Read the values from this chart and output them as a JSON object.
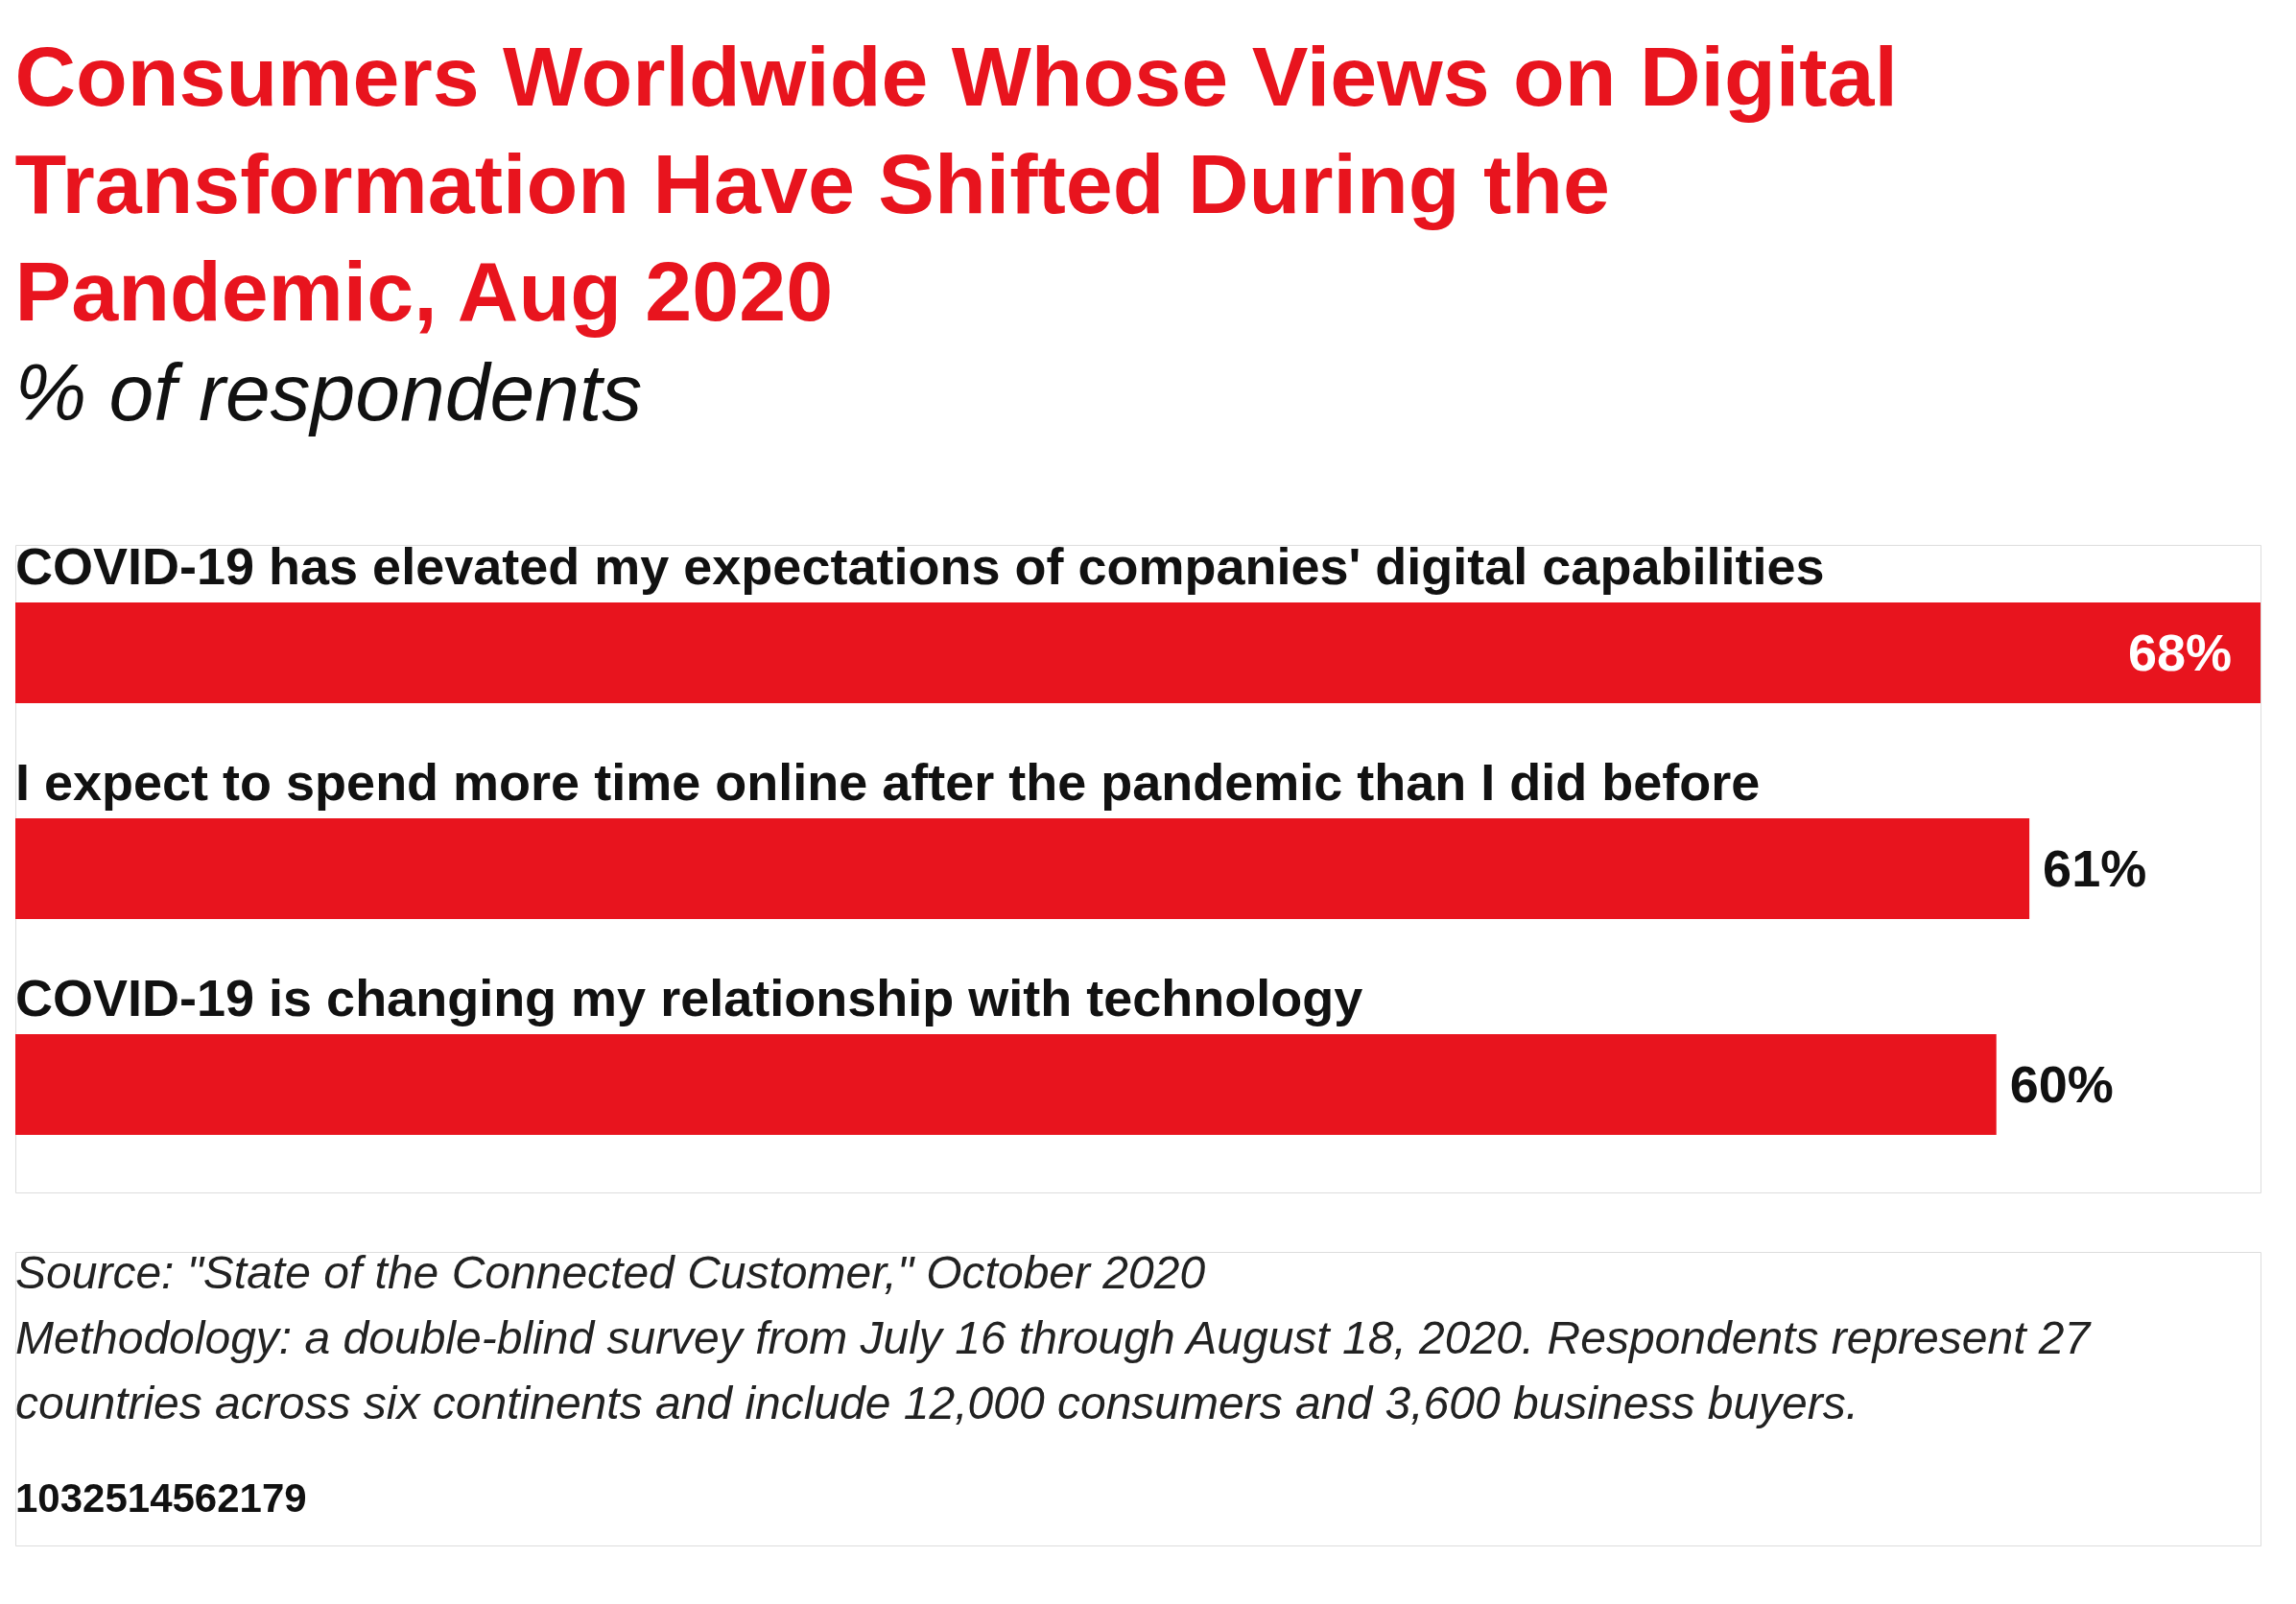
{
  "chart_data": {
    "type": "bar",
    "orientation": "horizontal",
    "title": "Consumers Worldwide Whose Views on Digital Transformation Have Shifted During the Pandemic, Aug 2020",
    "subtitle": "% of respondents",
    "categories": [
      "COVID-19 has elevated my expectations of companies' digital capabilities",
      "I expect to spend more time online after the pandemic than I did before",
      "COVID-19 is changing my relationship with technology"
    ],
    "values": [
      68,
      61,
      60
    ],
    "color": "#e8141e",
    "value_labels": [
      "68%",
      "61%",
      "60%"
    ],
    "annotations": [
      "Source: \"State of the Connected Customer,\" October 2020",
      "Methodology: a double-blind survey from July 16 through August 18, 2020. Respondents represent 27 countries across six continents and include 12,000 consumers and 3,600 business buyers.",
      "1032514562179"
    ]
  }
}
